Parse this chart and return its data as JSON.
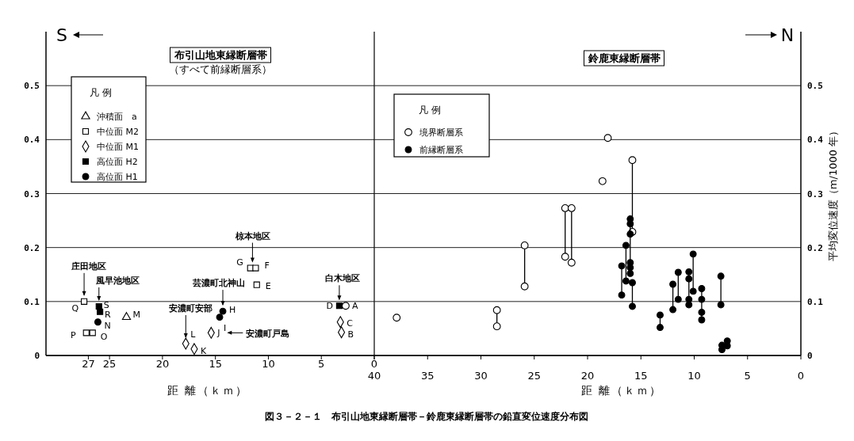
{
  "chart_data": [
    {
      "type": "scatter",
      "title": "布引山地東縁断層帯",
      "subtitle": "（すべて前縁断層系）",
      "xlabel": "距 離（ｋｍ）",
      "legend_title": "凡 例",
      "legend": "top left",
      "grid": "y",
      "xlim": [
        31,
        0
      ],
      "xticks": [
        27,
        25,
        20,
        15,
        10,
        5,
        0
      ],
      "ylim": [
        0,
        0.6
      ],
      "yticks": [
        0,
        0.1,
        0.2,
        0.3,
        0.4,
        0.5
      ],
      "series": [
        {
          "name": "沖積面　a",
          "marker": "triangle",
          "color": "#ffffff",
          "x": [
            23.4
          ],
          "values": [
            0.071
          ]
        },
        {
          "name": "中位面 M2",
          "marker": "square",
          "color": "#ffffff",
          "x": [
            27.4,
            27.2,
            26.6,
            11.7,
            11.2,
            11.1
          ],
          "values": [
            0.1,
            0.042,
            0.042,
            0.162,
            0.162,
            0.131
          ]
        },
        {
          "name": "中位面 M1",
          "marker": "diamond",
          "color": "#ffffff",
          "x": [
            17.8,
            17.0,
            15.4,
            3.2,
            3.1
          ],
          "values": [
            0.022,
            0.012,
            0.042,
            0.062,
            0.043
          ]
        },
        {
          "name": "高位面 H2",
          "marker": "square",
          "color": "#000000",
          "x": [
            26.0,
            25.9,
            3.3
          ],
          "values": [
            0.091,
            0.081,
            0.092
          ]
        },
        {
          "name": "高位面 H1",
          "marker": "circle",
          "color": "#000000",
          "x": [
            26.1,
            14.6,
            14.3
          ],
          "values": [
            0.062,
            0.071,
            0.082
          ]
        },
        {
          "marker": "circle",
          "color": "#ffffff",
          "x": [
            2.7
          ],
          "values": [
            0.092
          ]
        }
      ],
      "annotations": [
        {
          "text": "Q",
          "x": 27.4,
          "y": 0.1
        },
        {
          "text": "P",
          "x": 27.2,
          "y": 0.042
        },
        {
          "text": "O",
          "x": 26.6,
          "y": 0.042
        },
        {
          "text": "S",
          "x": 26.0,
          "y": 0.091
        },
        {
          "text": "R",
          "x": 25.9,
          "y": 0.081
        },
        {
          "text": "N",
          "x": 26.1,
          "y": 0.062
        },
        {
          "text": "M",
          "x": 23.4,
          "y": 0.071
        },
        {
          "text": "L",
          "x": 17.8,
          "y": 0.022
        },
        {
          "text": "K",
          "x": 17.0,
          "y": 0.012
        },
        {
          "text": "J",
          "x": 15.4,
          "y": 0.042
        },
        {
          "text": "I",
          "x": 14.6,
          "y": 0.071
        },
        {
          "text": "H",
          "x": 14.3,
          "y": 0.082
        },
        {
          "text": "G",
          "x": 11.7,
          "y": 0.162
        },
        {
          "text": "F",
          "x": 11.2,
          "y": 0.162
        },
        {
          "text": "E",
          "x": 11.1,
          "y": 0.131
        },
        {
          "text": "D",
          "x": 3.3,
          "y": 0.092
        },
        {
          "text": "A",
          "x": 2.7,
          "y": 0.092
        },
        {
          "text": "C",
          "x": 3.2,
          "y": 0.062
        },
        {
          "text": "B",
          "x": 3.1,
          "y": 0.043
        },
        {
          "text": "庄田地区",
          "x": 27.4,
          "y": 0.1
        },
        {
          "text": "風早池地区",
          "x": 26.0,
          "y": 0.091
        },
        {
          "text": "芸濃町北神山",
          "x": 14.3,
          "y": 0.082
        },
        {
          "text": "安濃町安部",
          "x": 17.8,
          "y": 0.022
        },
        "安濃町戸島",
        {
          "text": "椋本地区",
          "x": 11.5,
          "y": 0.162
        },
        {
          "text": "白木地区",
          "x": 3.3,
          "y": 0.092
        },
        "S",
        "図３－２－１　布引山地東縁断層帯－鈴鹿東縁断層帯の鉛直変位速度分布図"
      ]
    },
    {
      "type": "line",
      "title": "鈴鹿東縁断層帯",
      "xlabel": "距 離（ｋｍ）",
      "ylabel": "平均変位速度（m/1000 年）",
      "legend_title": "凡 例",
      "legend": "top left",
      "grid": "y",
      "xlim": [
        40,
        0
      ],
      "xticks": [
        40,
        35,
        30,
        25,
        20,
        15,
        10,
        5,
        0
      ],
      "ylim": [
        0,
        0.6
      ],
      "yticks": [
        0,
        0.1,
        0.2,
        0.3,
        0.4,
        0.5
      ],
      "series": [
        {
          "name": "境界断層系",
          "marker": "circle",
          "color": "#ffffff",
          "x": [
            37.9,
            null,
            28.5,
            28.5,
            null,
            25.9,
            25.9,
            null,
            22.1,
            22.1,
            null,
            21.5,
            21.5,
            null,
            18.6,
            null,
            18.1,
            null,
            15.8,
            15.8
          ],
          "values": [
            0.07,
            null,
            0.084,
            0.054,
            null,
            0.204,
            0.128,
            null,
            0.273,
            0.183,
            null,
            0.273,
            0.172,
            null,
            0.323,
            null,
            0.403,
            null,
            0.362,
            0.229
          ]
        },
        {
          "name": "前縁断層系",
          "marker": "circle",
          "color": "#000000",
          "x": [
            16.8,
            16.8,
            null,
            16.4,
            16.4,
            null,
            16.0,
            16.0,
            16.0,
            16.0,
            16.0,
            16.0,
            null,
            15.8,
            15.8,
            null,
            13.2,
            13.2,
            null,
            12.0,
            12.0,
            null,
            11.5,
            11.5,
            null,
            10.5,
            10.5,
            10.5,
            10.5,
            null,
            10.1,
            10.1,
            null,
            9.3,
            9.3,
            9.3,
            9.3,
            null,
            7.5,
            7.5,
            null,
            7.4,
            7.4,
            null,
            6.9,
            6.9
          ],
          "values": [
            0.166,
            0.112,
            null,
            0.204,
            0.138,
            null,
            0.253,
            0.244,
            0.225,
            0.172,
            0.163,
            0.152,
            null,
            0.135,
            0.091,
            null,
            0.075,
            0.052,
            null,
            0.132,
            0.085,
            null,
            0.154,
            0.104,
            null,
            0.155,
            0.142,
            0.104,
            0.094,
            null,
            0.188,
            0.119,
            null,
            0.124,
            0.104,
            0.08,
            0.066,
            null,
            0.147,
            0.094,
            null,
            0.019,
            0.011,
            null,
            0.027,
            0.018
          ]
        }
      ],
      "annotations": [
        "N"
      ]
    }
  ]
}
